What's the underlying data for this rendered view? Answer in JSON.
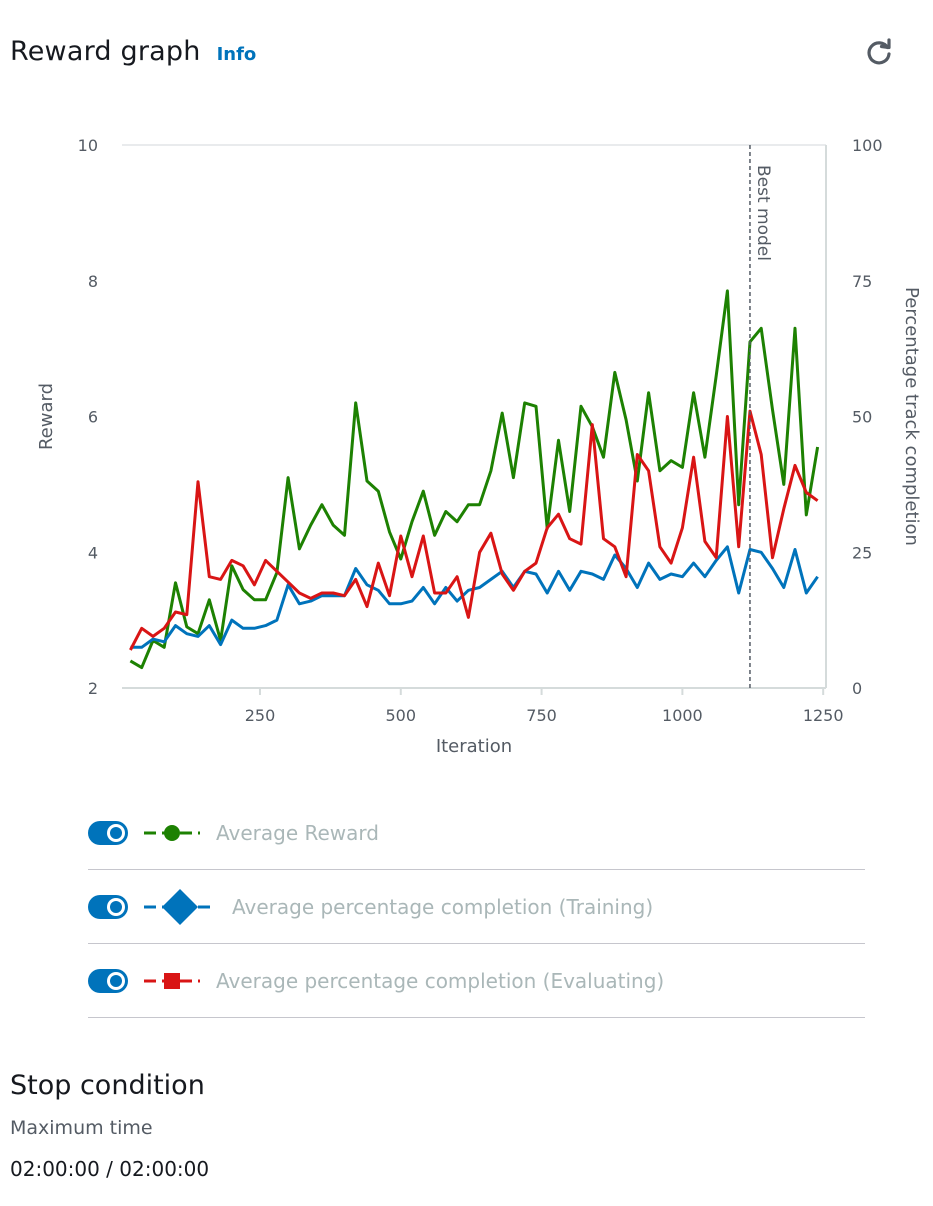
{
  "header": {
    "title": "Reward graph",
    "info_link": "Info"
  },
  "chart_data": {
    "type": "line",
    "title": "",
    "xlabel": "Iteration",
    "ylabel": "Reward",
    "y2label": "Percentage track completion",
    "xlim": [
      5,
      1255
    ],
    "ylim": [
      2,
      10
    ],
    "y2lim": [
      0,
      100
    ],
    "x_ticks": [
      250,
      500,
      750,
      1000,
      1250
    ],
    "y_ticks": [
      2,
      4,
      6,
      8,
      10
    ],
    "y2_ticks": [
      0,
      25,
      50,
      75,
      100
    ],
    "best_model": {
      "x": 1120,
      "label": "Best model"
    },
    "x": [
      20,
      40,
      60,
      80,
      100,
      120,
      140,
      160,
      180,
      200,
      220,
      240,
      260,
      280,
      300,
      320,
      340,
      360,
      380,
      400,
      420,
      440,
      460,
      480,
      500,
      520,
      540,
      560,
      580,
      600,
      620,
      640,
      660,
      680,
      700,
      720,
      740,
      760,
      780,
      800,
      820,
      840,
      860,
      880,
      900,
      920,
      940,
      960,
      980,
      1000,
      1020,
      1040,
      1060,
      1080,
      1100,
      1120,
      1140,
      1160,
      1180,
      1200,
      1220,
      1240
    ],
    "series": [
      {
        "name": "Average Reward",
        "axis": "left",
        "color": "#1d8102",
        "marker": "circle",
        "values": [
          2.4,
          2.3,
          2.7,
          2.6,
          3.55,
          2.9,
          2.8,
          3.3,
          2.7,
          3.8,
          3.45,
          3.3,
          3.3,
          3.7,
          5.1,
          4.05,
          4.4,
          4.7,
          4.4,
          4.25,
          6.2,
          5.05,
          4.9,
          4.3,
          3.9,
          4.45,
          4.9,
          4.25,
          4.6,
          4.45,
          4.7,
          4.7,
          5.2,
          6.05,
          5.1,
          6.2,
          6.15,
          4.35,
          5.65,
          4.6,
          6.15,
          5.85,
          5.4,
          6.65,
          5.95,
          5.05,
          6.35,
          5.2,
          5.35,
          5.25,
          6.35,
          5.4,
          6.6,
          7.85,
          4.7,
          7.1,
          7.3,
          6.1,
          5.0,
          7.3,
          4.55,
          5.55
        ]
      },
      {
        "name": "Average percentage completion (Training)",
        "axis": "right",
        "color": "#0073bb",
        "marker": "diamond",
        "values": [
          7.5,
          7.5,
          9.0,
          8.5,
          11.5,
          10.0,
          9.5,
          11.5,
          8.0,
          12.5,
          11.0,
          11.0,
          11.5,
          12.5,
          19.0,
          15.5,
          16.0,
          17.0,
          17.0,
          17.0,
          22.0,
          19.0,
          18.0,
          15.5,
          15.5,
          16.0,
          18.5,
          15.5,
          18.5,
          16.0,
          18.0,
          18.5,
          20.0,
          21.5,
          18.5,
          21.5,
          21.0,
          17.5,
          21.5,
          18.0,
          21.5,
          21.0,
          20.0,
          24.5,
          22.0,
          18.5,
          23.0,
          20.0,
          21.0,
          20.5,
          23.0,
          20.5,
          23.5,
          26.0,
          17.5,
          25.5,
          25.0,
          22.0,
          18.5,
          25.5,
          17.5,
          20.5
        ]
      },
      {
        "name": "Average percentage completion (Evaluating)",
        "axis": "right",
        "color": "#d91515",
        "marker": "square",
        "values": [
          7.0,
          11.0,
          9.5,
          11.0,
          14.0,
          13.5,
          38.0,
          20.5,
          20.0,
          23.5,
          22.5,
          19.0,
          23.5,
          21.5,
          19.5,
          17.5,
          16.5,
          17.5,
          17.5,
          17.0,
          20.0,
          15.0,
          23.0,
          17.0,
          28.0,
          20.5,
          28.0,
          17.5,
          17.5,
          20.5,
          13.0,
          25.0,
          28.5,
          21.0,
          18.0,
          21.5,
          23.0,
          29.5,
          32.0,
          27.5,
          26.5,
          48.5,
          27.5,
          26.0,
          20.5,
          43.0,
          40.0,
          26.0,
          23.0,
          29.5,
          42.5,
          27.0,
          24.0,
          50.0,
          26.0,
          51.0,
          43.0,
          24.0,
          33.0,
          41.0,
          36.0,
          34.5
        ]
      }
    ]
  },
  "legend": {
    "items": [
      {
        "label": "Average Reward",
        "color": "#1d8102",
        "marker": "circle",
        "enabled": true
      },
      {
        "label": "Average percentage completion (Training)",
        "color": "#0073bb",
        "marker": "diamond",
        "enabled": true
      },
      {
        "label": "Average percentage completion (Evaluating)",
        "color": "#d91515",
        "marker": "square",
        "enabled": true
      }
    ]
  },
  "stop_condition": {
    "title": "Stop condition",
    "label": "Maximum time",
    "value": "02:00:00 / 02:00:00"
  }
}
